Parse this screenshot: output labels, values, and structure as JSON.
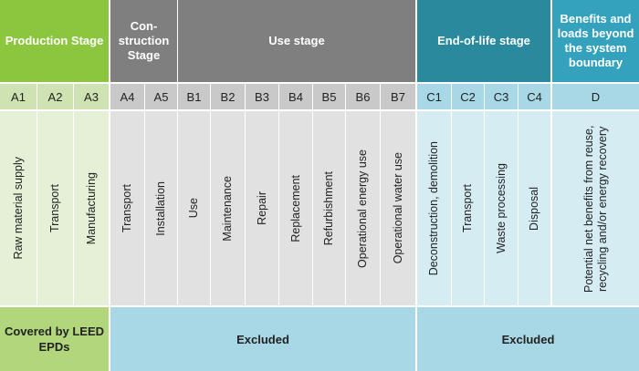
{
  "stages": [
    {
      "title": "Production Stage"
    },
    {
      "title": "Con-struction Stage"
    },
    {
      "title": "Use stage"
    },
    {
      "title": "End-of-life stage"
    },
    {
      "title": "Benefits and loads beyond the system boundary"
    }
  ],
  "modules": [
    {
      "code": "A1",
      "description": "Raw material supply"
    },
    {
      "code": "A2",
      "description": "Transport"
    },
    {
      "code": "A3",
      "description": "Manufacturing"
    },
    {
      "code": "A4",
      "description": "Transport"
    },
    {
      "code": "A5",
      "description": "Installation"
    },
    {
      "code": "B1",
      "description": "Use"
    },
    {
      "code": "B2",
      "description": "Maintenance"
    },
    {
      "code": "B3",
      "description": "Repair"
    },
    {
      "code": "B4",
      "description": "Replacement"
    },
    {
      "code": "B5",
      "description": "Refurbishment"
    },
    {
      "code": "B6",
      "description": "Operational energy use"
    },
    {
      "code": "B7",
      "description": "Operational water use"
    },
    {
      "code": "C1",
      "description": "Deconstruction, demolition"
    },
    {
      "code": "C2",
      "description": "Transport"
    },
    {
      "code": "C3",
      "description": "Waste processing"
    },
    {
      "code": "C4",
      "description": "Disposal"
    },
    {
      "code": "D",
      "description": "Potential net benefits from reuse, recycling and/or energy recovery"
    }
  ],
  "footer": [
    "Covered by LEED EPDs",
    "Excluded",
    "Excluded"
  ]
}
